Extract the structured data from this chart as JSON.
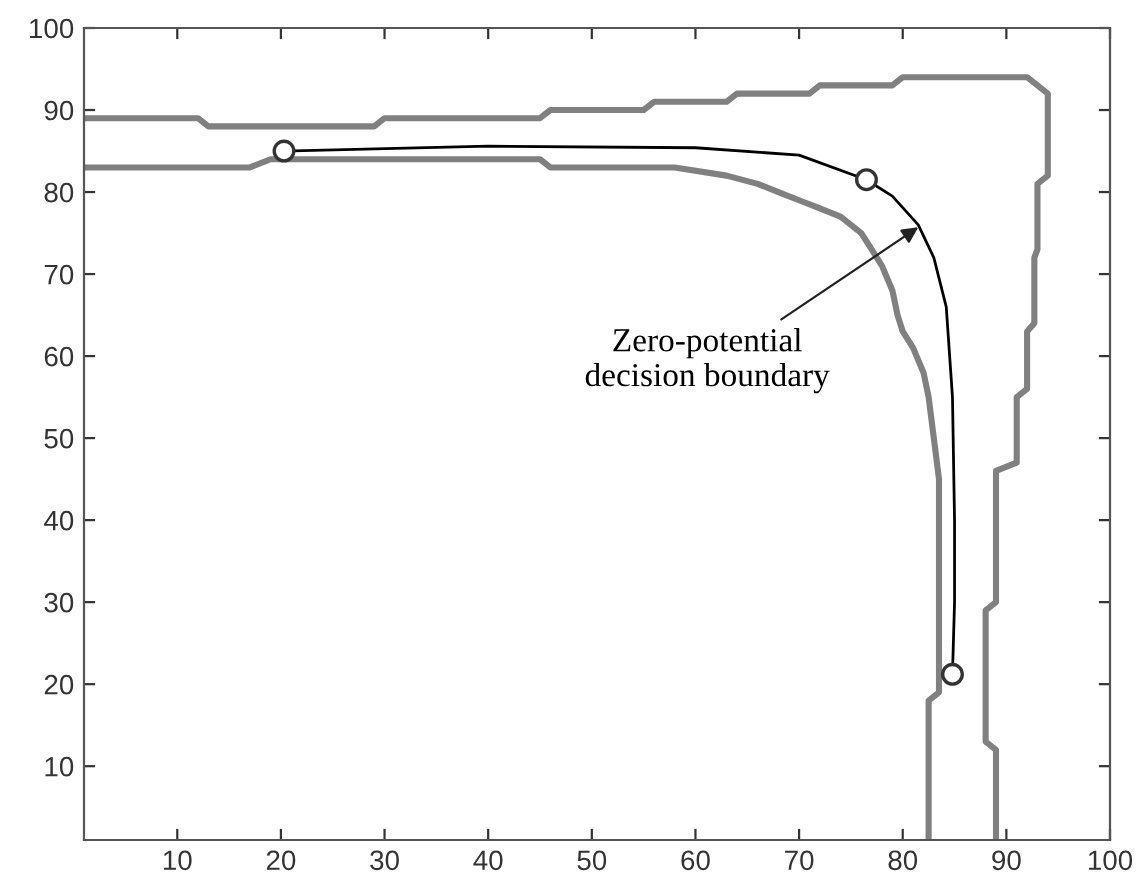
{
  "chart_data": {
    "type": "line",
    "xlim": [
      1,
      100
    ],
    "ylim": [
      1,
      100
    ],
    "xticks": [
      10,
      20,
      30,
      40,
      50,
      60,
      70,
      80,
      90,
      100
    ],
    "yticks": [
      10,
      20,
      30,
      40,
      50,
      60,
      70,
      80,
      90,
      100
    ],
    "grid": false,
    "line_style": "solid",
    "series": [
      {
        "color": "#808080",
        "x": [
          1,
          12,
          13,
          29,
          30,
          45,
          46,
          55,
          56,
          63,
          64,
          71,
          72,
          79,
          80,
          92,
          94,
          94,
          93,
          93,
          92.7,
          92.7,
          92,
          92,
          91,
          91,
          89,
          89,
          88,
          88,
          89,
          89
        ],
        "values": [
          89,
          89,
          88,
          88,
          89,
          89,
          90,
          90,
          91,
          91,
          92,
          92,
          93,
          93,
          94,
          94,
          92,
          82,
          81,
          73,
          72,
          64,
          63,
          56,
          55,
          47,
          46,
          30,
          29,
          13,
          12,
          1
        ]
      },
      {
        "color": "#808080",
        "x": [
          1,
          17,
          19,
          45,
          46,
          58,
          63,
          66,
          68,
          70,
          72,
          74,
          75,
          76,
          77,
          78,
          79,
          79.5,
          80,
          81,
          82,
          82.5,
          83,
          83.5,
          83.5,
          82.5,
          82.5
        ],
        "values": [
          83,
          83,
          84,
          84,
          83,
          83,
          82,
          81,
          80,
          79,
          78,
          77,
          76,
          75,
          73,
          71,
          68,
          65,
          63,
          61,
          58,
          55,
          50,
          45,
          19,
          18,
          1
        ]
      },
      {
        "color": "#000000",
        "x": [
          20.3,
          40,
          60,
          70,
          76.5,
          79,
          81.5,
          83,
          84.2,
          84.8,
          85,
          85,
          84.8
        ],
        "values": [
          85,
          85.6,
          85.4,
          84.5,
          81.5,
          79.5,
          76,
          72,
          66,
          55,
          40,
          30,
          21.2
        ]
      },
      {
        "type": "scatter",
        "color": "#333333",
        "marker": "circle",
        "x": [
          20.3,
          76.5,
          84.8
        ],
        "values": [
          85,
          81.5,
          21.2
        ]
      }
    ],
    "annotations": [
      {
        "text": "Zero-potential\ndecision boundary",
        "x": 81.5,
        "y": 75.7
      }
    ]
  }
}
